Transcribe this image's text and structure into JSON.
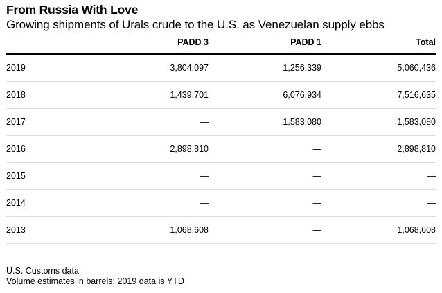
{
  "title": "From Russia With Love",
  "subtitle": "Growing shipments of Urals crude to the U.S. as Venezuelan supply ebbs",
  "chart_data": {
    "type": "table",
    "columns": [
      "",
      "PADD 3",
      "PADD 1",
      "Total"
    ],
    "rows": [
      {
        "year": "2019",
        "padd3": "3,804,097",
        "padd1": "1,256,339",
        "total": "5,060,436"
      },
      {
        "year": "2018",
        "padd3": "1,439,701",
        "padd1": "6,076,934",
        "total": "7,516,635"
      },
      {
        "year": "2017",
        "padd3": "—",
        "padd1": "1,583,080",
        "total": "1,583,080"
      },
      {
        "year": "2016",
        "padd3": "2,898,810",
        "padd1": "—",
        "total": "2,898,810"
      },
      {
        "year": "2015",
        "padd3": "—",
        "padd1": "—",
        "total": "—"
      },
      {
        "year": "2014",
        "padd3": "—",
        "padd1": "—",
        "total": "—"
      },
      {
        "year": "2013",
        "padd3": "1,068,608",
        "padd1": "—",
        "total": "1,068,608"
      }
    ]
  },
  "footer": {
    "source": "U.S. Customs data",
    "note": "Volume estimates in barrels; 2019 data is YTD"
  }
}
